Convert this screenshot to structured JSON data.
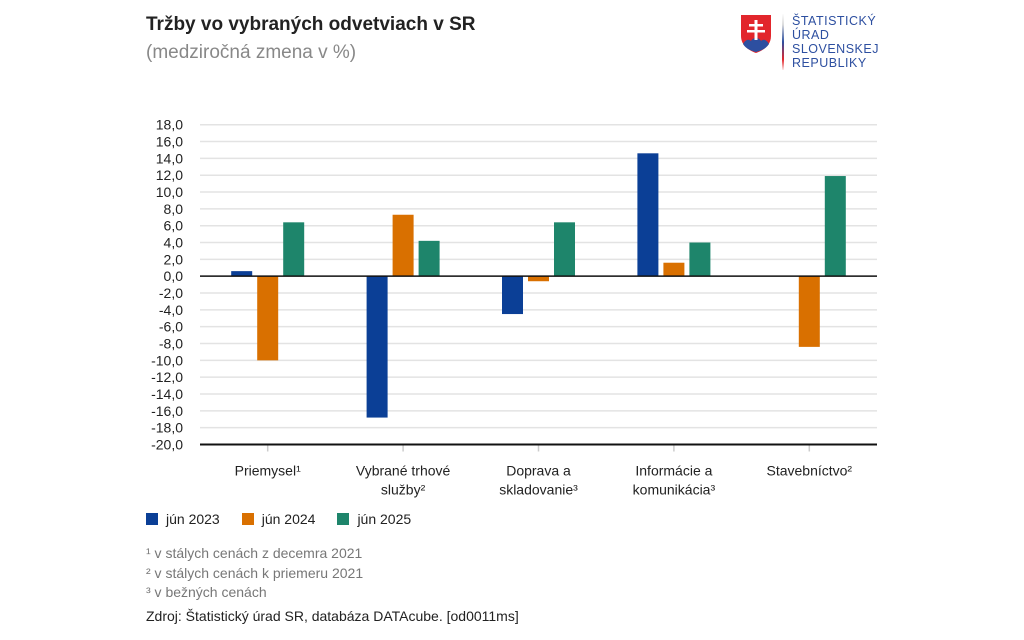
{
  "header": {
    "title": "Tržby vo vybraných odvetviach v SR",
    "subtitle": "(medziročná zmena v %)"
  },
  "logo": {
    "lines": [
      "ŠTATISTICKÝ",
      "ÚRAD",
      "SLOVENSKEJ",
      "REPUBLIKY"
    ]
  },
  "chart_data": {
    "type": "bar",
    "title": "Tržby vo vybraných odvetviach v SR",
    "subtitle": "(medziročná zmena v %)",
    "categories": [
      [
        "Priemysel¹"
      ],
      [
        "Vybrané trhové",
        "služby²"
      ],
      [
        "Doprava a",
        "skladovanie³"
      ],
      [
        "Informácie a",
        "komunikácia³"
      ],
      [
        "Stavebníctvo²"
      ]
    ],
    "series": [
      {
        "name": "jún 2023",
        "color": "#0b3f96",
        "values": [
          0.6,
          -16.8,
          -4.5,
          14.6,
          0.0
        ]
      },
      {
        "name": "jún 2024",
        "color": "#d97000",
        "values": [
          -10.0,
          7.3,
          -0.6,
          1.6,
          -8.4
        ]
      },
      {
        "name": "jún 2025",
        "color": "#1e856b",
        "values": [
          6.4,
          4.2,
          6.4,
          4.0,
          11.9
        ]
      }
    ],
    "ylim": [
      -20,
      18
    ],
    "ytick_step": 2,
    "ytick_labels": [
      "18,0",
      "16,0",
      "14,0",
      "12,0",
      "10,0",
      "8,0",
      "6,0",
      "4,0",
      "2,0",
      "0,0",
      "-2,0",
      "-4,0",
      "-6,0",
      "-8,0",
      "-10,0",
      "-12,0",
      "-14,0",
      "-16,0",
      "-18,0",
      "-20,0"
    ],
    "grid": true,
    "legend": "bottom-left"
  },
  "notes": [
    "¹ v stálych cenách z decemra 2021",
    "² v stálych cenách k priemeru 2021",
    "³ v bežných cenách"
  ],
  "source": "Zdroj: Štatistický úrad SR, databáza DATAcube. [od0011ms]"
}
